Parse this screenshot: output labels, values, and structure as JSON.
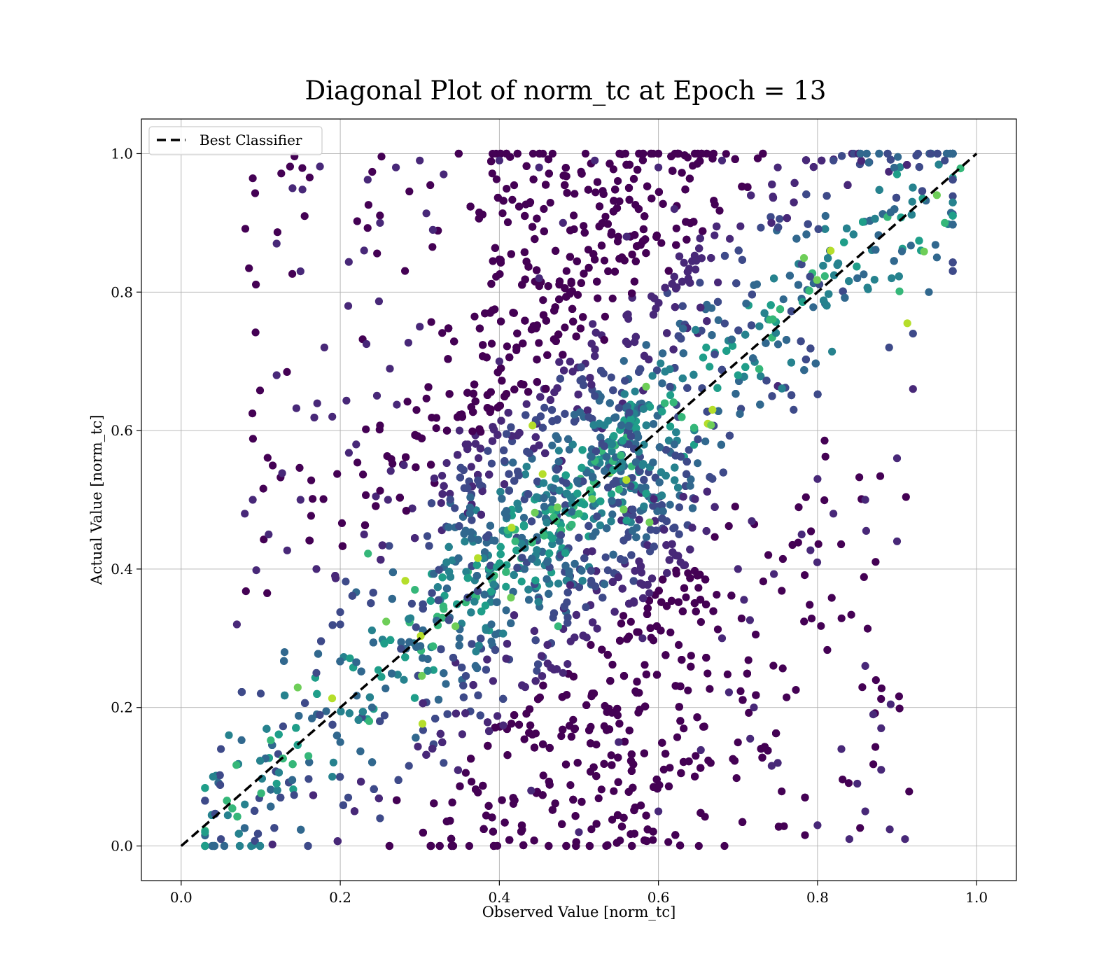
{
  "chart_data": {
    "type": "scatter",
    "title": "Diagonal Plot of norm_tc at Epoch = 13",
    "xlabel": "Observed Value [norm_tc]",
    "ylabel": "Actual Value [norm_tc]",
    "xlim": [
      -0.05,
      1.05
    ],
    "ylim": [
      -0.05,
      1.05
    ],
    "xticks": [
      "0.0",
      "0.2",
      "0.4",
      "0.6",
      "0.8",
      "1.0"
    ],
    "yticks": [
      "0.0",
      "0.2",
      "0.4",
      "0.6",
      "0.8",
      "1.0"
    ],
    "grid": true,
    "legend": {
      "placement": "upper-left",
      "entries": [
        "Best Classifier"
      ]
    },
    "colormap": [
      "#440154",
      "#482878",
      "#3e4a89",
      "#31688e",
      "#26828e",
      "#1f9e89",
      "#35b779",
      "#6ece58",
      "#b5de2b",
      "#fde725"
    ],
    "reference_line": {
      "name": "Best Classifier",
      "x": [
        0,
        1
      ],
      "y": [
        0,
        1
      ],
      "style": "dashed",
      "color": "#000000"
    },
    "series": [
      {
        "note": "dense point cloud; representative sample of visible points (observed, actual)",
        "points": [
          [
            0.12,
            0.87
          ],
          [
            0.08,
            0.48
          ],
          [
            0.09,
            0.5
          ],
          [
            0.07,
            0.32
          ],
          [
            0.15,
            0.83
          ],
          [
            0.14,
            0.95
          ],
          [
            0.12,
            0.68
          ],
          [
            0.11,
            0.45
          ],
          [
            0.91,
            0.01
          ],
          [
            0.84,
            0.01
          ],
          [
            0.88,
            0.11
          ],
          [
            0.9,
            0.44
          ],
          [
            0.9,
            0.56
          ],
          [
            0.92,
            0.66
          ],
          [
            0.92,
            0.74
          ],
          [
            0.94,
            0.8
          ],
          [
            0.89,
            0.72
          ],
          [
            0.86,
            0.05
          ],
          [
            0.8,
            0.03
          ],
          [
            0.88,
            0.17
          ],
          [
            0.87,
            0.19
          ],
          [
            0.86,
            0.26
          ],
          [
            0.85,
            0.09
          ],
          [
            0.83,
            0.14
          ],
          [
            0.21,
            0.07
          ],
          [
            0.77,
            0.63
          ],
          [
            0.56,
            0.47
          ],
          [
            0.64,
            0.52
          ],
          [
            0.39,
            0.32
          ],
          [
            0.37,
            0.26
          ],
          [
            0.29,
            0.35
          ],
          [
            0.2,
            0.32
          ],
          [
            0.04,
            0.1
          ],
          [
            0.05,
            0.14
          ],
          [
            0.06,
            0.16
          ],
          [
            0.03,
            0.02
          ],
          [
            0.05,
            0.01
          ],
          [
            0.1,
            0.22
          ],
          [
            0.13,
            0.28
          ],
          [
            0.17,
            0.4
          ],
          [
            0.19,
            0.62
          ],
          [
            0.18,
            0.72
          ],
          [
            0.21,
            0.78
          ],
          [
            0.23,
            0.86
          ],
          [
            0.25,
            0.9
          ],
          [
            0.27,
            0.98
          ],
          [
            0.3,
            0.99
          ],
          [
            0.33,
            0.97
          ],
          [
            0.4,
            0.99
          ],
          [
            0.45,
            0.98
          ],
          [
            0.52,
            0.99
          ],
          [
            0.6,
            0.98
          ],
          [
            0.68,
            0.99
          ],
          [
            0.75,
            0.98
          ],
          [
            0.82,
            0.99
          ],
          [
            0.9,
            0.97
          ],
          [
            0.95,
            0.94
          ],
          [
            0.96,
            0.9
          ],
          [
            0.93,
            0.86
          ],
          [
            0.96,
            0.99
          ],
          [
            0.95,
            0.85
          ],
          [
            0.85,
            0.82
          ],
          [
            0.81,
            0.91
          ],
          [
            0.78,
            0.84
          ],
          [
            0.72,
            0.81
          ],
          [
            0.7,
            0.68
          ],
          [
            0.66,
            0.72
          ],
          [
            0.74,
            0.76
          ],
          [
            0.62,
            0.58
          ],
          [
            0.58,
            0.55
          ],
          [
            0.5,
            0.48
          ],
          [
            0.46,
            0.41
          ],
          [
            0.42,
            0.44
          ],
          [
            0.35,
            0.3
          ],
          [
            0.31,
            0.27
          ],
          [
            0.28,
            0.24
          ],
          [
            0.24,
            0.2
          ],
          [
            0.2,
            0.15
          ],
          [
            0.16,
            0.13
          ],
          [
            0.12,
            0.09
          ],
          [
            0.08,
            0.06
          ],
          [
            0.33,
            0.12
          ],
          [
            0.44,
            0.08
          ],
          [
            0.5,
            0.02
          ],
          [
            0.55,
            0.15
          ],
          [
            0.6,
            0.05
          ],
          [
            0.48,
            0.25
          ],
          [
            0.58,
            0.3
          ],
          [
            0.4,
            0.7
          ],
          [
            0.45,
            0.82
          ],
          [
            0.52,
            0.65
          ],
          [
            0.48,
            0.9
          ],
          [
            0.56,
            0.88
          ],
          [
            0.62,
            0.92
          ],
          [
            0.35,
            0.6
          ],
          [
            0.3,
            0.75
          ],
          [
            0.68,
            0.3
          ],
          [
            0.72,
            0.2
          ],
          [
            0.75,
            0.12
          ],
          [
            0.7,
            0.4
          ],
          [
            0.78,
            0.45
          ],
          [
            0.8,
            0.53
          ],
          [
            0.82,
            0.48
          ],
          [
            0.86,
            0.5
          ],
          [
            0.26,
            0.5
          ],
          [
            0.23,
            0.45
          ],
          [
            0.28,
            0.55
          ],
          [
            0.22,
            0.58
          ],
          [
            0.15,
            0.5
          ],
          [
            0.17,
            0.25
          ],
          [
            0.19,
            0.1
          ],
          [
            0.25,
            0.04
          ]
        ]
      }
    ]
  }
}
